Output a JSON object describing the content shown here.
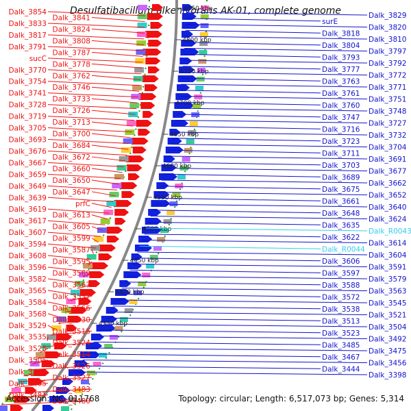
{
  "title": "Desulfatibacillum alkenivorans AK-01, complete genome",
  "footer": {
    "accession": "Accession: NC_011768",
    "topology": "Topology: circular; Length: 6,517,073 bp; Genes: 5,314"
  },
  "colors": {
    "left_label": "#ee1111",
    "right_label": "#1111cc",
    "rna_label": "#33ccee",
    "backbone": "#888888",
    "dotted_track": "#119911",
    "left_strand_genes": "#ee1111",
    "right_strand_genes": "#1122dd"
  },
  "ticks": [
    "4850 kbp",
    "4800 kbp",
    "4750 kbp",
    "4700 kbp",
    "4650 kbp",
    "4600 kbp",
    "4550 kbp",
    "4500 kbp",
    "4450 kbp",
    "4400 kbp",
    "4350 kbp"
  ],
  "left_labels": [
    "Dalk_3854",
    "Dalk_3841",
    "Dalk_3833",
    "Dalk_3824",
    "Dalk_3817",
    "Dalk_3808",
    "Dalk_3791",
    "Dalk_3787",
    "sucC",
    "Dalk_3778",
    "Dalk_3770",
    "Dalk_3762",
    "Dalk_3754",
    "Dalk_3746",
    "Dalk_3741",
    "Dalk_3733",
    "Dalk_3728",
    "Dalk_3726",
    "Dalk_3719",
    "Dalk_3713",
    "Dalk_3705",
    "Dalk_3700",
    "Dalk_3693",
    "Dalk_3684",
    "Dalk_3676",
    "Dalk_3672",
    "Dalk_3667",
    "Dalk_3660",
    "Dalk_3659",
    "Dalk_3650",
    "Dalk_3649",
    "Dalk_3647",
    "Dalk_3639",
    "prfC",
    "Dalk_3619",
    "Dalk_3613",
    "Dalk_3617",
    "Dalk_3605",
    "Dalk_3607",
    "Dalk_3599",
    "Dalk_3594",
    "Dalk_3587",
    "Dalk_3608",
    "Dalk_3595",
    "Dalk_3596",
    "Dalk_3569",
    "Dalk_3582",
    "Dalk_3567",
    "Dalk_3565",
    "Dalk_3537",
    "Dalk_3584",
    "Dalk_3566",
    "Dalk_3568",
    "Dalk_3530",
    "Dalk_3529",
    "Dalk_3515",
    "Dalk_3535",
    "Dalk_3524",
    "Dalk_3525",
    "Dalk_3514",
    "Dalk_3505",
    "Dalk_3526",
    "Dalk_3496",
    "Dalk_3527",
    "Dalk_3495",
    "Dalk_3483",
    "Dalk_3481",
    "Dalk_3480"
  ],
  "right_labels": [
    "Dalk_3829",
    "surE",
    "Dalk_3820",
    "Dalk_3818",
    "Dalk_3810",
    "Dalk_3804",
    "Dalk_3797",
    "Dalk_3793",
    "Dalk_3792",
    "Dalk_3777",
    "Dalk_3772",
    "Dalk_3763",
    "Dalk_3771",
    "Dalk_3761",
    "Dalk_3751",
    "Dalk_3760",
    "Dalk_3748",
    "Dalk_3747",
    "Dalk_3727",
    "Dalk_3716",
    "Dalk_3732",
    "Dalk_3723",
    "Dalk_3704",
    "Dalk_3711",
    "Dalk_3691",
    "Dalk_3703",
    "Dalk_3677",
    "Dalk_3689",
    "Dalk_3662",
    "Dalk_3675",
    "Dalk_3652",
    "Dalk_3661",
    "Dalk_3640",
    "Dalk_3648",
    "Dalk_3624",
    "Dalk_3635",
    "Dalk_R0043",
    "Dalk_3622",
    "Dalk_3614",
    "Dalk_R0044",
    "Dalk_3604",
    "Dalk_3606",
    "Dalk_3591",
    "Dalk_3597",
    "Dalk_3579",
    "Dalk_3588",
    "Dalk_3563",
    "Dalk_3572",
    "Dalk_3545",
    "Dalk_3538",
    "Dalk_3521",
    "Dalk_3513",
    "Dalk_3504",
    "Dalk_3523",
    "Dalk_3492",
    "Dalk_3485",
    "Dalk_3475",
    "Dalk_3467",
    "Dalk_3456",
    "Dalk_3444",
    "Dalk_3398"
  ],
  "rna_labels": [
    "Dalk_R0043",
    "Dalk_R0044"
  ]
}
